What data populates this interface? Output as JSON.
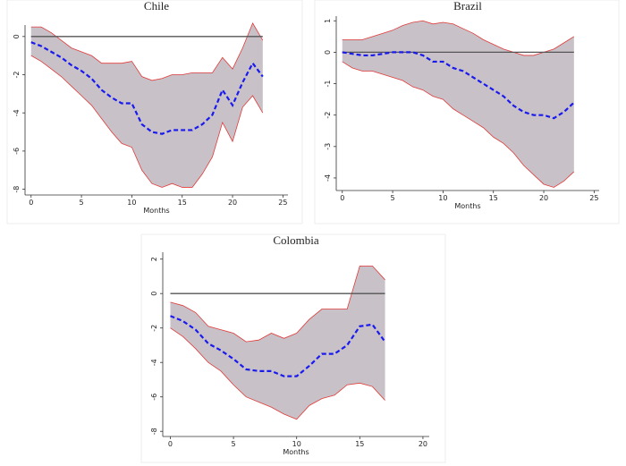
{
  "chart_data": [
    {
      "type": "line",
      "title": "Chile",
      "x_label": "Months",
      "x": [
        0,
        1,
        2,
        3,
        4,
        5,
        6,
        7,
        8,
        9,
        10,
        11,
        12,
        13,
        14,
        15,
        16,
        17,
        18,
        19,
        20,
        21,
        22,
        23
      ],
      "xlim": [
        -0.6,
        25.5
      ],
      "xticks": [
        0,
        5,
        10,
        15,
        20,
        25
      ],
      "ylim": [
        -8.3,
        0.6
      ],
      "yticks": [
        0,
        -2,
        -4,
        -6,
        -8
      ],
      "series": [
        {
          "color": "#1a1aee",
          "values": [
            -0.3,
            -0.5,
            -0.8,
            -1.1,
            -1.5,
            -1.8,
            -2.2,
            -2.8,
            -3.2,
            -3.5,
            -3.5,
            -4.6,
            -5.0,
            -5.1,
            -4.9,
            -4.9,
            -4.9,
            -4.6,
            -4.1,
            -2.8,
            -3.6,
            -2.4,
            -1.4,
            -2.1
          ]
        }
      ],
      "band": {
        "color": "#c8c2c8",
        "edge_color": "#e03a3a",
        "upper": [
          0.5,
          0.5,
          0.2,
          -0.2,
          -0.6,
          -0.8,
          -1.0,
          -1.4,
          -1.4,
          -1.4,
          -1.3,
          -2.1,
          -2.3,
          -2.2,
          -2.0,
          -2.0,
          -1.9,
          -1.9,
          -1.9,
          -1.1,
          -1.7,
          -0.6,
          0.7,
          -0.2
        ],
        "lower": [
          -1.0,
          -1.3,
          -1.7,
          -2.1,
          -2.6,
          -3.1,
          -3.6,
          -4.3,
          -5.0,
          -5.6,
          -5.8,
          -7.0,
          -7.7,
          -7.9,
          -7.7,
          -7.9,
          -7.9,
          -7.2,
          -6.3,
          -4.5,
          -5.5,
          -3.7,
          -3.1,
          -4.0
        ]
      },
      "reference_line": {
        "value": 0,
        "color": "#555555"
      }
    },
    {
      "type": "line",
      "title": "Brazil",
      "x_label": "Months",
      "x": [
        0,
        1,
        2,
        3,
        4,
        5,
        6,
        7,
        8,
        9,
        10,
        11,
        12,
        13,
        14,
        15,
        16,
        17,
        18,
        19,
        20,
        21,
        22,
        23
      ],
      "xlim": [
        -0.6,
        25.5
      ],
      "xticks": [
        0,
        5,
        10,
        15,
        20,
        25
      ],
      "ylim": [
        -4.4,
        1.15
      ],
      "yticks": [
        1,
        0,
        -1,
        -2,
        -3,
        -4
      ],
      "series": [
        {
          "color": "#1a1aee",
          "values": [
            0,
            -0.05,
            -0.1,
            -0.1,
            -0.05,
            0,
            0,
            0,
            -0.1,
            -0.3,
            -0.3,
            -0.5,
            -0.6,
            -0.8,
            -1.0,
            -1.2,
            -1.4,
            -1.7,
            -1.9,
            -2.0,
            -2.0,
            -2.1,
            -1.9,
            -1.6
          ]
        }
      ],
      "band": {
        "color": "#c8c2c8",
        "edge_color": "#e03a3a",
        "upper": [
          0.4,
          0.4,
          0.4,
          0.5,
          0.6,
          0.7,
          0.85,
          0.95,
          1.0,
          0.9,
          0.95,
          0.9,
          0.75,
          0.6,
          0.4,
          0.25,
          0.1,
          0,
          -0.1,
          -0.1,
          0,
          0.1,
          0.3,
          0.5
        ],
        "lower": [
          -0.3,
          -0.5,
          -0.6,
          -0.6,
          -0.7,
          -0.8,
          -0.9,
          -1.1,
          -1.2,
          -1.4,
          -1.5,
          -1.8,
          -2.0,
          -2.2,
          -2.4,
          -2.7,
          -2.9,
          -3.2,
          -3.6,
          -3.9,
          -4.2,
          -4.3,
          -4.1,
          -3.8
        ]
      },
      "reference_line": {
        "value": 0,
        "color": "#555555"
      }
    },
    {
      "type": "line",
      "title": "Colombia",
      "x_label": "Months",
      "x": [
        0,
        1,
        2,
        3,
        4,
        5,
        6,
        7,
        8,
        9,
        10,
        11,
        12,
        13,
        14,
        15,
        16,
        17
      ],
      "xlim": [
        -0.6,
        20.5
      ],
      "xticks": [
        0,
        5,
        10,
        15,
        20
      ],
      "ylim": [
        -8.3,
        2.4
      ],
      "yticks": [
        2,
        0,
        -2,
        -4,
        -6,
        -8
      ],
      "series": [
        {
          "color": "#1a1aee",
          "values": [
            -1.3,
            -1.6,
            -2.1,
            -2.9,
            -3.3,
            -3.8,
            -4.4,
            -4.5,
            -4.5,
            -4.8,
            -4.8,
            -4.2,
            -3.5,
            -3.5,
            -3.0,
            -1.9,
            -1.8,
            -2.8
          ]
        }
      ],
      "band": {
        "color": "#c8c2c8",
        "edge_color": "#e03a3a",
        "upper": [
          -0.5,
          -0.7,
          -1.1,
          -1.9,
          -2.1,
          -2.3,
          -2.8,
          -2.7,
          -2.3,
          -2.6,
          -2.3,
          -1.5,
          -0.9,
          -0.9,
          -0.9,
          1.6,
          1.6,
          0.8
        ],
        "lower": [
          -2.0,
          -2.5,
          -3.2,
          -4.0,
          -4.5,
          -5.3,
          -6.0,
          -6.3,
          -6.6,
          -7.0,
          -7.3,
          -6.5,
          -6.1,
          -5.9,
          -5.3,
          -5.2,
          -5.4,
          -6.2
        ]
      },
      "reference_line": {
        "value": 0,
        "color": "#555555"
      }
    }
  ]
}
